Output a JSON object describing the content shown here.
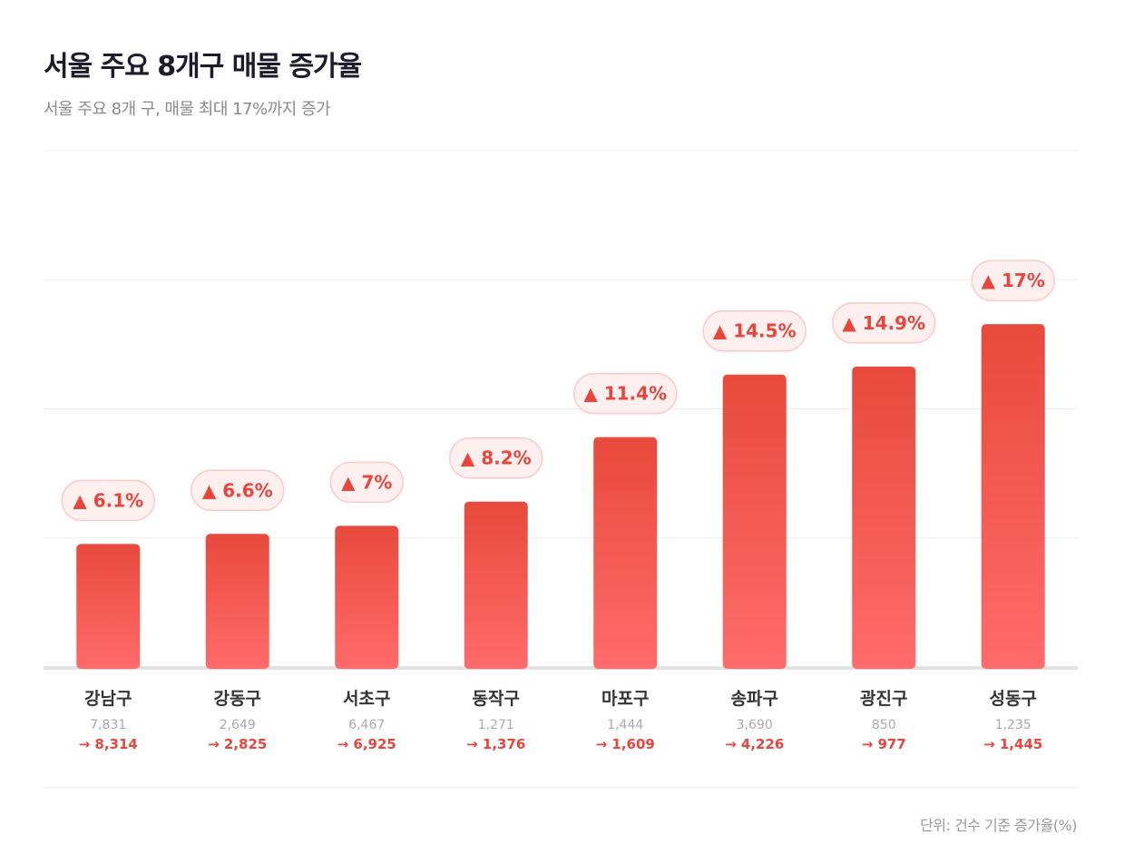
{
  "title": "서울 주요 8개구 매물 증가율",
  "subtitle": "서울 주요 8개 구, 매물 최대 17%까지 증가",
  "footer": "단위: 건수 기준 증가율(%)",
  "colors": {
    "bar_top": "#e84a3c",
    "bar_bottom": "#ff6b6b",
    "accent": "#e8453c",
    "pill_bg": "#fff0f0",
    "pill_border": "#fbc9c9"
  },
  "chart_data": {
    "type": "bar",
    "title": "서울 주요 8개구 매물 증가율",
    "xlabel": "",
    "ylabel": "증가율(%)",
    "ylim": [
      0,
      25.6
    ],
    "grid": true,
    "categories": [
      "강남구",
      "강동구",
      "서초구",
      "동작구",
      "마포구",
      "송파구",
      "광진구",
      "성동구"
    ],
    "values": [
      6.1,
      6.6,
      7,
      8.2,
      11.4,
      14.5,
      14.9,
      17
    ],
    "value_labels": [
      "▲ 6.1%",
      "▲ 6.6%",
      "▲ 7%",
      "▲ 8.2%",
      "▲ 11.4%",
      "▲ 14.5%",
      "▲ 14.9%",
      "▲ 17%"
    ],
    "before": [
      "7,831",
      "2,649",
      "6,467",
      "1,271",
      "1,444",
      "3,690",
      "850",
      "1,235"
    ],
    "after": [
      "→ 8,314",
      "→ 2,825",
      "→ 6,925",
      "→ 1,376",
      "→ 1,609",
      "→ 4,226",
      "→ 977",
      "→ 1,445"
    ]
  }
}
